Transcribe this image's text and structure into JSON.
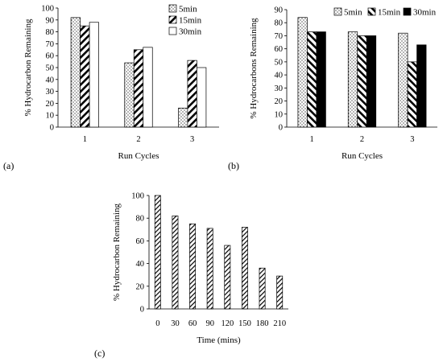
{
  "chart_data": [
    {
      "type": "bar",
      "panel_label": "(a)",
      "xlabel": "Run Cycles",
      "ylabel": "% Hydrocarbon Remaining",
      "ylim": [
        0,
        100
      ],
      "yticks": [
        0,
        10,
        20,
        30,
        40,
        50,
        60,
        70,
        80,
        90,
        100
      ],
      "categories": [
        "1",
        "2",
        "3"
      ],
      "legend_position": "top-right",
      "grid": false,
      "series": [
        {
          "name": "5min",
          "pattern": "dots",
          "values": [
            92,
            54,
            16
          ]
        },
        {
          "name": "15min",
          "pattern": "diagonal",
          "values": [
            85,
            65,
            56
          ]
        },
        {
          "name": "30min",
          "pattern": "white",
          "values": [
            88,
            67,
            50
          ]
        }
      ]
    },
    {
      "type": "bar",
      "panel_label": "(b)",
      "xlabel": "Run Cycles",
      "ylabel": "% Hydrocarbons Remaining",
      "ylim": [
        0,
        90
      ],
      "yticks": [
        0,
        10,
        20,
        30,
        40,
        50,
        60,
        70,
        80,
        90
      ],
      "categories": [
        "1",
        "2",
        "3"
      ],
      "legend_position": "top",
      "grid": false,
      "series": [
        {
          "name": "5min",
          "pattern": "dots",
          "values": [
            84,
            73,
            72
          ]
        },
        {
          "name": "15min",
          "pattern": "backslash",
          "values": [
            73,
            70,
            50
          ]
        },
        {
          "name": "30min",
          "pattern": "black",
          "values": [
            73,
            70,
            63
          ]
        }
      ]
    },
    {
      "type": "bar",
      "panel_label": "(c)",
      "xlabel": "Time (mins)",
      "ylabel": "% Hydrocarbon Remaining",
      "ylim": [
        0,
        100
      ],
      "yticks": [
        0,
        20,
        40,
        60,
        80,
        100
      ],
      "categories": [
        "0",
        "30",
        "60",
        "90",
        "120",
        "150",
        "180",
        "210"
      ],
      "grid": false,
      "series": [
        {
          "pattern": "diagonal",
          "values": [
            100,
            82,
            75,
            71,
            56,
            72,
            36,
            29
          ]
        }
      ]
    }
  ]
}
